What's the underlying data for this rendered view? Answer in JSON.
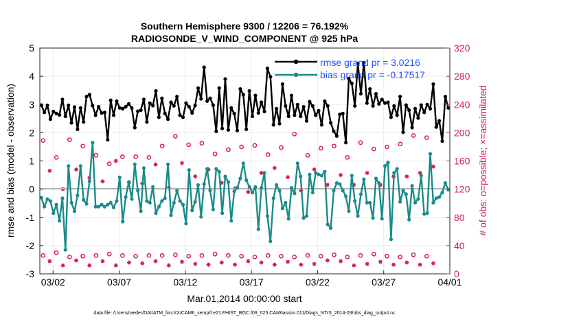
{
  "chart_data": {
    "type": "line",
    "title": "Southern Hemisphere 9300 / 12206 = 76.192%",
    "subtitle": "RADIOSONDE_V_WIND_COMPONENT @ 925 hPa",
    "xlabel": "Mar.01,2014 00:00:00 start",
    "ylabel": "rmse and bias (model - observation)",
    "y2label": "# of obs: o=possible; ×=assimilated",
    "footer": "data file: /Users/raeder/DAI/ATM_forcXX/CAM6_setup/f.e21.FHIST_BGC.f09_025.CAM6assim.011/Diags_NTrS_2014-03/obs_diag_output.nc",
    "xlim": [
      0,
      31
    ],
    "ylim": [
      -3,
      5
    ],
    "y2lim": [
      0,
      320
    ],
    "x_ticks": [
      1,
      6,
      11,
      16,
      21,
      26,
      31
    ],
    "x_tick_labels": [
      "03/02",
      "03/07",
      "03/12",
      "03/17",
      "03/22",
      "03/27",
      "04/01"
    ],
    "y_ticks": [
      -3,
      -2,
      -1,
      0,
      1,
      2,
      3,
      4,
      5
    ],
    "y2_ticks": [
      0,
      40,
      80,
      120,
      160,
      200,
      240,
      280,
      320
    ],
    "legend": {
      "placement": "top-right",
      "rmse": "rmse grand pr = 3.0216",
      "bias": "bias grand pr = -0.17517"
    },
    "colors": {
      "rmse": "#000000",
      "bias": "#1a8a8a",
      "obs": "#d9195a",
      "zero_line": "#b4b4b4",
      "axes": "#222222",
      "grid": "#ececec"
    },
    "series": [
      {
        "name": "rmse",
        "axis": "left",
        "values": [
          2.98,
          2.72,
          2.97,
          2.48,
          2.75,
          2.68,
          2.63,
          3.18,
          2.58,
          2.97,
          2.35,
          2.91,
          2.12,
          2.88,
          2.38,
          3.28,
          3.35,
          2.96,
          2.62,
          2.92,
          2.7,
          2.72,
          1.75,
          3.15,
          2.62,
          3.12,
          2.88,
          2.85,
          2.92,
          3.02,
          2.88,
          2.18,
          2.76,
          2.8,
          3.18,
          2.38,
          3.05,
          2.96,
          3.48,
          2.55,
          3.22,
          2.68,
          2.48,
          3.08,
          2.95,
          3.28,
          2.62,
          2.55,
          3.05,
          2.92,
          2.7,
          2.96,
          3.58,
          3.2,
          4.32,
          3.12,
          3.22,
          2.98,
          2.05,
          3.58,
          2.15,
          3.9,
          2.1,
          2.88,
          2.68,
          2.08,
          3.55,
          3.35,
          2.12,
          3.48,
          2.58,
          3.32,
          2.7,
          3.08,
          2.75,
          4.28,
          3.98,
          2.28,
          2.85,
          2.32,
          3.72,
          2.95,
          2.58,
          3.32,
          2.62,
          3.0,
          2.58,
          2.92,
          2.42,
          3.1,
          2.95,
          2.62,
          2.78,
          2.28,
          3.12,
          2.95,
          2.35,
          2.05,
          1.88,
          2.65,
          2.68,
          1.65,
          3.92,
          3.75,
          2.95,
          4.45,
          3.38,
          4.48,
          3.05,
          3.55,
          2.95,
          3.38,
          3.02,
          3.18,
          3.05,
          3.08,
          2.55,
          2.95,
          2.62,
          3.28,
          2.02,
          2.98,
          2.8,
          2.18,
          2.85,
          2.52,
          2.98,
          2.72,
          3.0,
          2.85,
          3.72,
          2.2,
          2.42,
          1.7,
          3.28,
          2.88
        ]
      },
      {
        "name": "bias",
        "axis": "left",
        "values": [
          -0.3,
          -0.62,
          -0.35,
          -0.42,
          -0.85,
          -0.55,
          -1.12,
          -0.32,
          -2.15,
          0.82,
          -0.48,
          -0.78,
          -0.22,
          0.82,
          -0.38,
          -0.52,
          0.28,
          1.65,
          -0.62,
          -0.62,
          -0.55,
          -0.62,
          -0.55,
          -0.48,
          -0.65,
          -0.42,
          0.42,
          -1.15,
          -0.28,
          0.25,
          -0.35,
          0.88,
          -0.05,
          -0.78,
          0.75,
          -0.42,
          -0.48,
          0.08,
          -0.85,
          -0.62,
          -0.42,
          -0.32,
          0.88,
          -0.92,
          -0.48,
          -0.05,
          -0.42,
          -0.55,
          -1.22,
          0.68,
          -0.75,
          -0.45,
          0.15,
          -0.98,
          0.18,
          0.72,
          -0.05,
          -0.72,
          0.72,
          0.62,
          -0.85,
          0.45,
          0.25,
          -1.12,
          -0.08,
          0.05,
          0.38,
          0.92,
          0.32,
          0.08,
          -0.12,
          0.08,
          -1.42,
          0.05,
          0.58,
          -0.95,
          -1.85,
          -0.32,
          0.15,
          -0.05,
          -0.68,
          -0.48,
          -1.05,
          0.05,
          -0.15,
          0.92,
          0.45,
          -1.02,
          -0.95,
          0.52,
          -0.12,
          0.58,
          0.52,
          0.48,
          0.62,
          -1.25,
          -1.38,
          -0.05,
          0.22,
          0.18,
          -0.05,
          -0.25,
          -0.78,
          0.48,
          -0.42,
          -0.95,
          -0.18,
          0.35,
          -0.48,
          -0.48,
          -1.02,
          0.38,
          0.22,
          -1.05,
          0.82,
          0.95,
          -1.78,
          0.58,
          0.72,
          -0.45,
          -0.05,
          -0.18,
          -1.08,
          0.12,
          -0.48,
          -0.35,
          0.48,
          -0.88,
          -0.85,
          1.25,
          -0.48,
          -0.32,
          -0.28,
          -0.12,
          0.22,
          -0.02
        ]
      },
      {
        "name": "obs_possible_high",
        "axis": "right",
        "values": [
          189,
          165,
          190,
          181,
          168,
          156,
          166,
          166,
          165,
          181,
          195,
          183,
          185,
          170,
          176,
          180,
          182,
          169,
          179,
          198,
          168,
          178,
          181,
          165,
          186,
          177,
          180,
          184,
          196,
          193
        ]
      },
      {
        "name": "obs_possible_low",
        "axis": "right",
        "values": [
          26,
          30,
          24,
          25,
          26,
          28,
          26,
          25,
          26,
          26,
          27,
          25,
          26,
          28,
          26,
          25,
          24,
          26,
          25,
          24,
          26,
          25,
          27,
          24,
          26,
          28,
          25,
          24,
          27,
          25
        ]
      },
      {
        "name": "obs_assimilated_high",
        "axis": "right",
        "values": [
          146,
          120,
          148,
          136,
          131,
          160,
          130,
          128,
          155,
          122,
          157,
          138,
          148,
          129,
          121,
          116,
          143,
          150,
          137,
          118,
          148,
          126,
          140,
          126,
          143,
          126,
          138,
          138,
          143,
          152
        ]
      },
      {
        "name": "obs_assimilated_low",
        "axis": "right",
        "values": [
          18,
          12,
          19,
          12,
          18,
          12,
          16,
          15,
          18,
          12,
          17,
          14,
          13,
          16,
          13,
          18,
          16,
          13,
          17,
          13,
          14,
          19,
          18,
          12,
          14,
          17,
          13,
          16,
          13,
          15
        ]
      }
    ]
  }
}
